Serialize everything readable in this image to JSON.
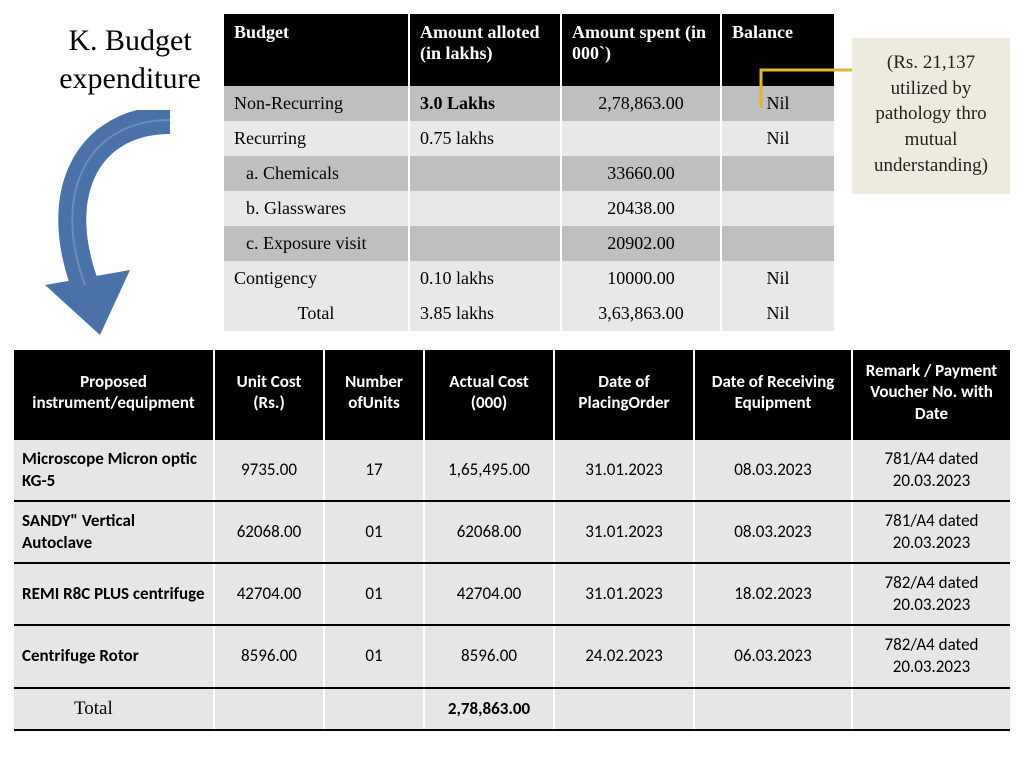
{
  "title": "K. Budget expenditure",
  "callout": "(Rs. 21,137 utilized by pathology thro mutual understanding)",
  "arrow_color": "#4a72a8",
  "connector_color": "#e0b830",
  "budget": {
    "headers": [
      "Budget",
      "Amount alloted (in lakhs)",
      "Amount spent (in 000`)",
      "Balance"
    ],
    "rows": [
      {
        "label": "Non-Recurring",
        "alloted": "3.0 Lakhs",
        "spent": "2,78,863.00",
        "balance": "Nil",
        "bold_alloted": true,
        "indent": false
      },
      {
        "label": "Recurring",
        "alloted": "0.75 lakhs",
        "spent": "",
        "balance": "Nil",
        "bold_alloted": false,
        "indent": false
      },
      {
        "label": "a. Chemicals",
        "alloted": "",
        "spent": "33660.00",
        "balance": "",
        "bold_alloted": false,
        "indent": true
      },
      {
        "label": "b. Glasswares",
        "alloted": "",
        "spent": "20438.00",
        "balance": "",
        "bold_alloted": false,
        "indent": true
      },
      {
        "label": "c. Exposure visit",
        "alloted": "",
        "spent": "20902.00",
        "balance": "",
        "bold_alloted": false,
        "indent": true
      },
      {
        "label": "Contigency",
        "alloted": "0.10 lakhs",
        "spent": "10000.00",
        "balance": "Nil",
        "bold_alloted": false,
        "indent": false
      }
    ],
    "total": {
      "label": "Total",
      "alloted": "3.85 lakhs",
      "spent": "3,63,863.00",
      "balance": "Nil"
    }
  },
  "equipment": {
    "headers": [
      "Proposed instrument/equipment",
      "Unit Cost (Rs.)",
      "Number ofUnits",
      "Actual Cost (000)",
      "Date of PlacingOrder",
      "Date of Receiving Equipment",
      "Remark / Payment Voucher No. with Date"
    ],
    "col_widths": [
      "200px",
      "110px",
      "100px",
      "130px",
      "140px",
      "158px",
      "158px"
    ],
    "rows": [
      {
        "name": "Microscope Micron optic KG-5",
        "unit": "9735.00",
        "num": "17",
        "actual": "1,65,495.00",
        "order": "31.01.2023",
        "recv": "08.03.2023",
        "remark": "781/A4 dated 20.03.2023"
      },
      {
        "name": "SANDY\" Vertical Autoclave",
        "unit": "62068.00",
        "num": "01",
        "actual": "62068.00",
        "order": "31.01.2023",
        "recv": "08.03.2023",
        "remark": "781/A4 dated 20.03.2023"
      },
      {
        "name": "REMI R8C PLUS centrifuge",
        "unit": "42704.00",
        "num": "01",
        "actual": "42704.00",
        "order": "31.01.2023",
        "recv": "18.02.2023",
        "remark": "782/A4 dated 20.03.2023"
      },
      {
        "name": "Centrifuge Rotor",
        "unit": "8596.00",
        "num": "01",
        "actual": "8596.00",
        "order": "24.02.2023",
        "recv": "06.03.2023",
        "remark": "782/A4 dated 20.03.2023"
      }
    ],
    "total": {
      "label": "Total",
      "actual": "2,78,863.00"
    }
  }
}
